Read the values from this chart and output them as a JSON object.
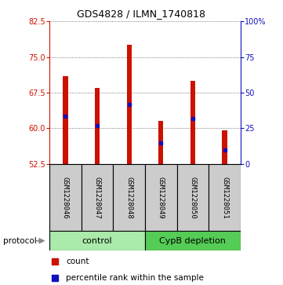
{
  "title": "GDS4828 / ILMN_1740818",
  "samples": [
    "GSM1228046",
    "GSM1228047",
    "GSM1228048",
    "GSM1228049",
    "GSM1228050",
    "GSM1228051"
  ],
  "bar_bottom": 52.5,
  "bar_tops": [
    71.0,
    68.5,
    77.5,
    61.5,
    70.0,
    59.5
  ],
  "blue_positions": [
    62.5,
    60.5,
    65.0,
    57.0,
    62.0,
    55.5
  ],
  "ylim_left": [
    52.5,
    82.5
  ],
  "ylim_right": [
    0,
    100
  ],
  "yticks_left": [
    52.5,
    60.0,
    67.5,
    75.0,
    82.5
  ],
  "yticks_right": [
    0,
    25,
    50,
    75,
    100
  ],
  "bar_color": "#CC1100",
  "blue_color": "#1111BB",
  "control_color": "#AAEAAA",
  "depletion_color": "#55CC55",
  "label_bg_color": "#CCCCCC",
  "label_edge_color": "#000000",
  "group_edge_color": "#000000",
  "protocol_label": "protocol",
  "legend_count": "count",
  "legend_percentile": "percentile rank within the sample",
  "bar_width": 0.15
}
